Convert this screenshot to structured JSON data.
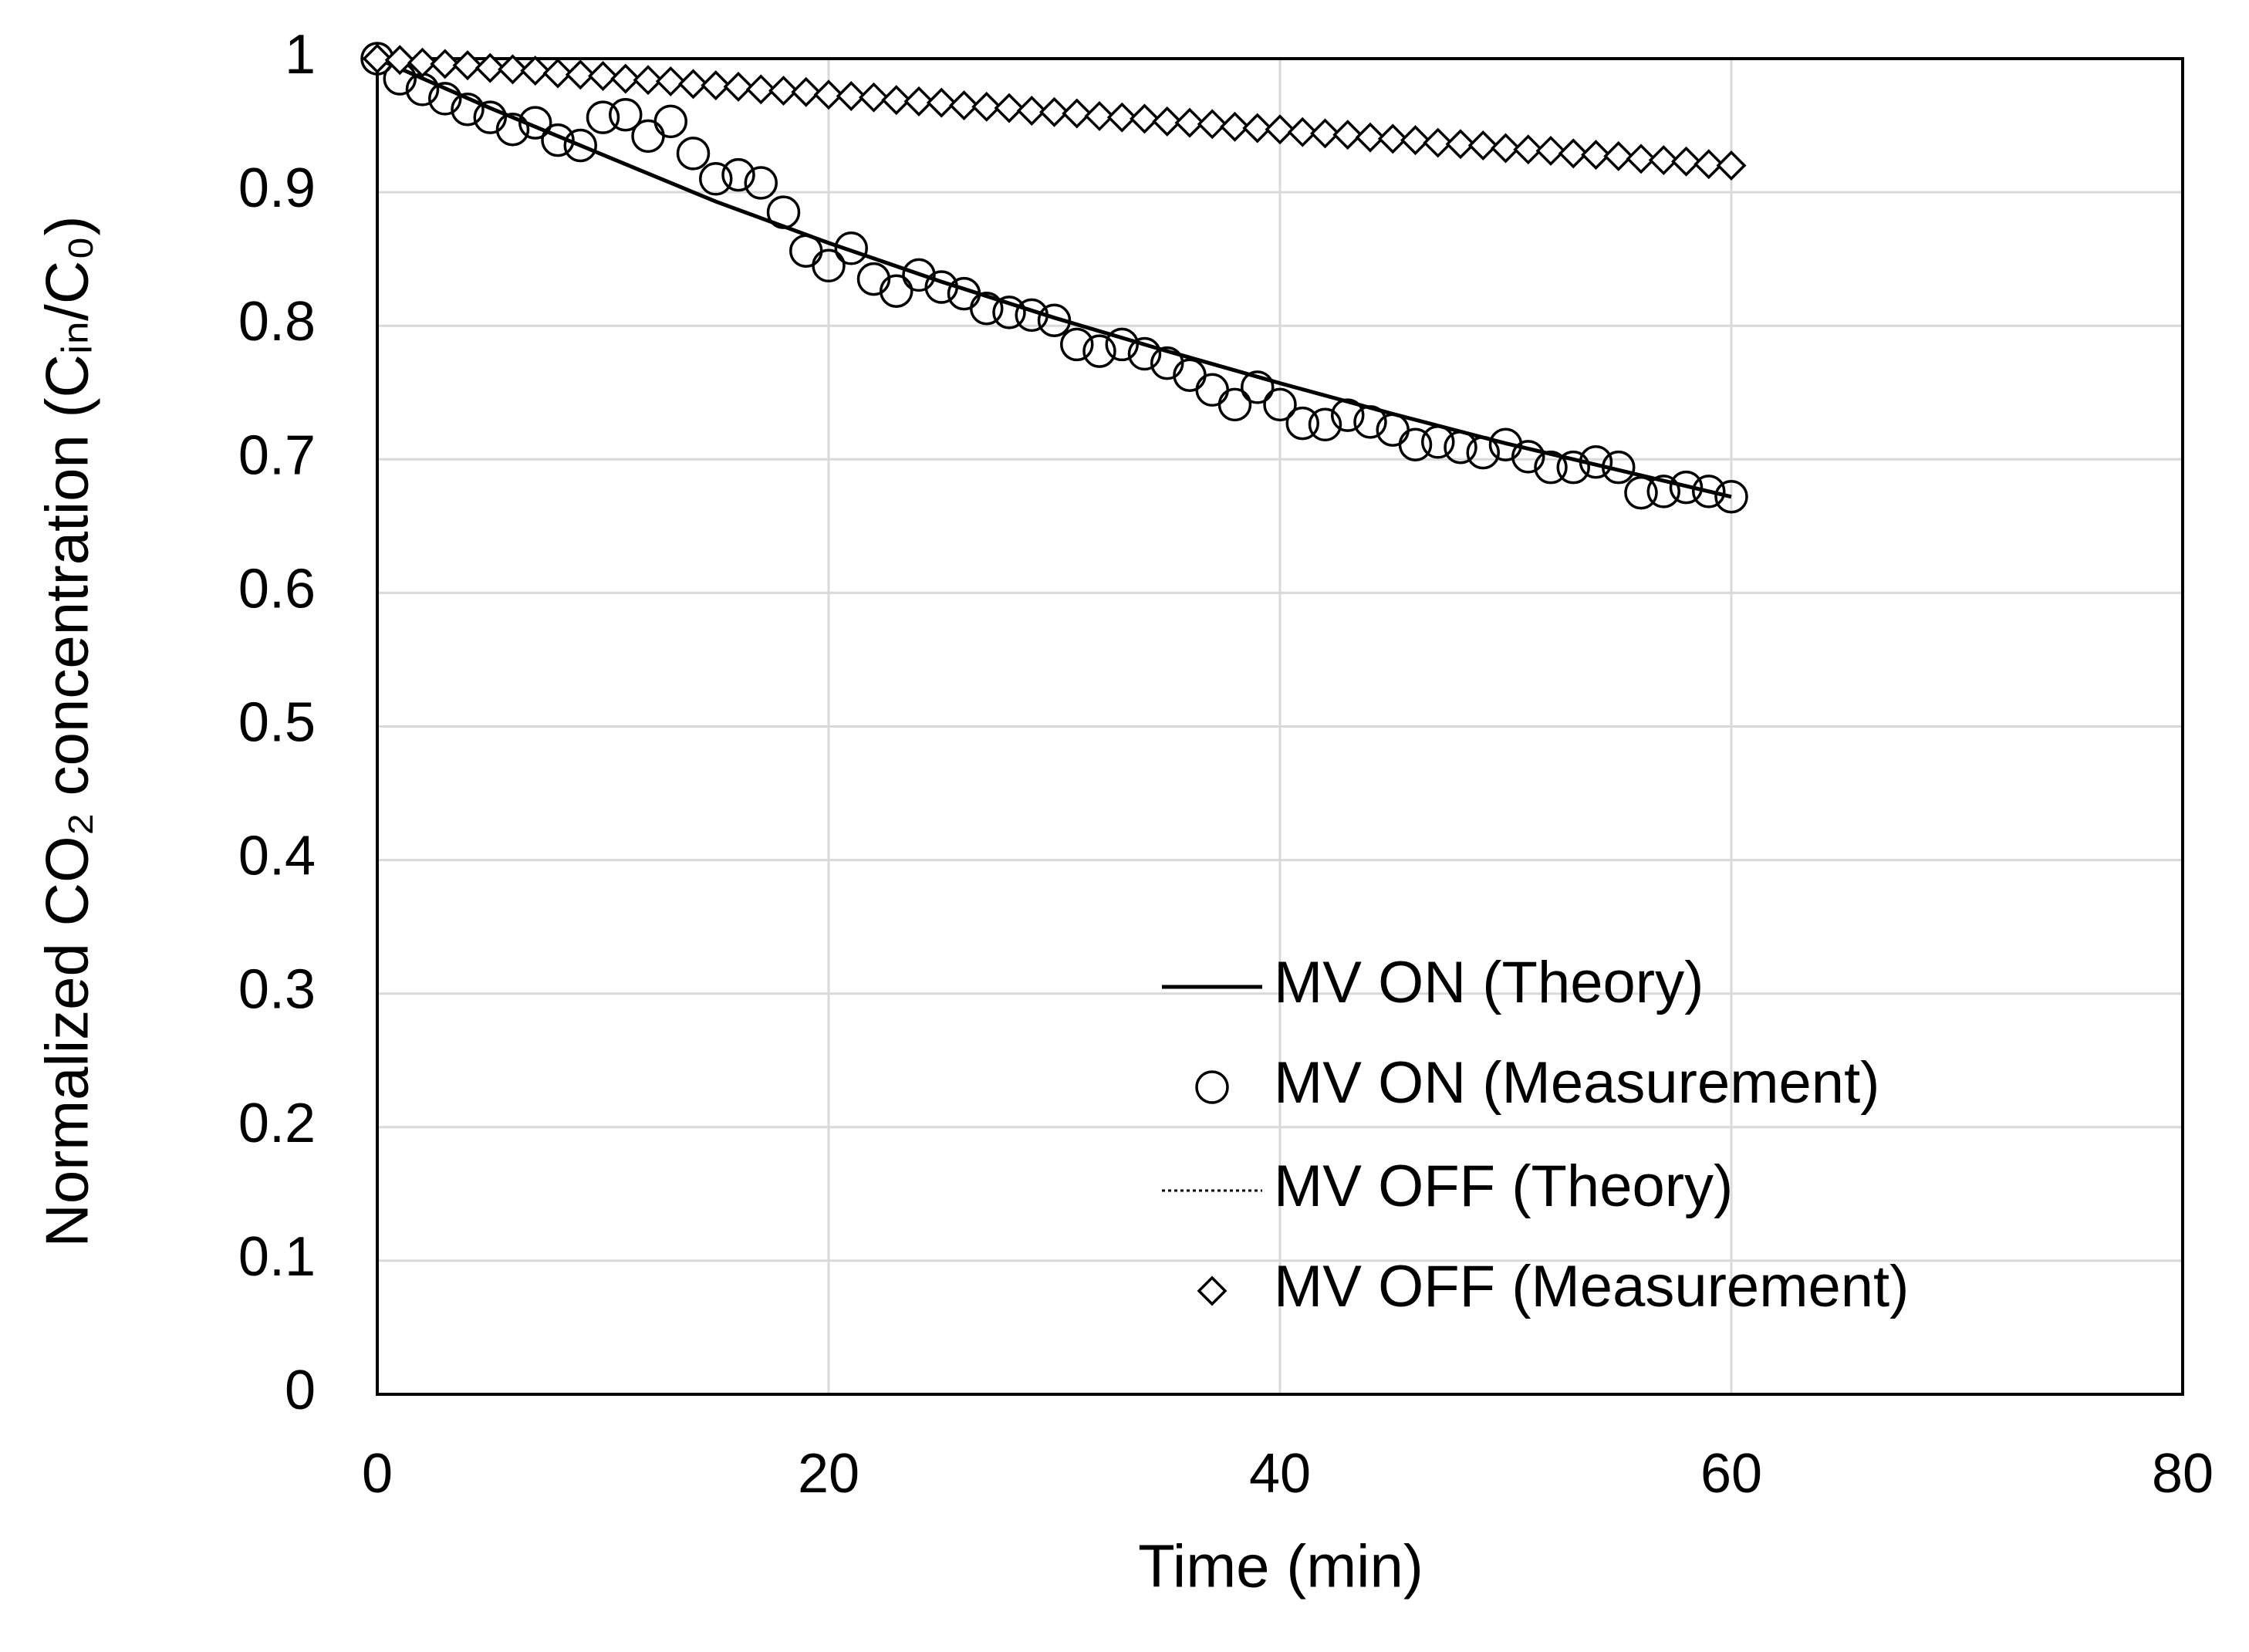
{
  "chart_data": {
    "type": "scatter",
    "xlabel": "Time (min)",
    "ylabel": "Normalized CO₂ concentration (Cᵢₙ/C₀)",
    "xlim": [
      0,
      80
    ],
    "xticks": [
      0,
      20,
      40,
      60,
      80
    ],
    "ylim": [
      0,
      1
    ],
    "yticks": [
      0,
      0.1,
      0.2,
      0.3,
      0.4,
      0.5,
      0.6,
      0.7,
      0.8,
      0.9,
      1
    ],
    "grid": true,
    "legend": "lower right",
    "series": [
      {
        "name": "MV ON (Theory)",
        "style": "solid",
        "color": "#000000",
        "x": [
          0,
          5,
          10,
          15,
          20,
          25,
          30,
          35,
          40,
          45,
          50,
          55,
          60
        ],
        "values": [
          1,
          0.963,
          0.928,
          0.893,
          0.862,
          0.833,
          0.806,
          0.781,
          0.757,
          0.734,
          0.712,
          0.692,
          0.672
        ]
      },
      {
        "name": "MV ON (Measurement)",
        "style": "circle",
        "color": "#000000",
        "x": [
          0,
          1,
          2,
          3,
          4,
          5,
          6,
          7,
          8,
          9,
          10,
          11,
          12,
          13,
          14,
          15,
          16,
          17,
          18,
          19,
          20,
          21,
          22,
          23,
          24,
          25,
          26,
          27,
          28,
          29,
          30,
          31,
          32,
          33,
          34,
          35,
          36,
          37,
          38,
          39,
          40,
          41,
          42,
          43,
          44,
          45,
          46,
          47,
          48,
          49,
          50,
          51,
          52,
          53,
          54,
          55,
          56,
          57,
          58,
          59,
          60
        ],
        "values": [
          1,
          0.985,
          0.977,
          0.97,
          0.962,
          0.956,
          0.947,
          0.952,
          0.939,
          0.935,
          0.956,
          0.958,
          0.942,
          0.953,
          0.929,
          0.91,
          0.913,
          0.907,
          0.885,
          0.856,
          0.845,
          0.858,
          0.835,
          0.826,
          0.838,
          0.829,
          0.824,
          0.813,
          0.81,
          0.808,
          0.804,
          0.786,
          0.781,
          0.786,
          0.779,
          0.772,
          0.763,
          0.752,
          0.741,
          0.754,
          0.741,
          0.727,
          0.726,
          0.733,
          0.728,
          0.722,
          0.711,
          0.713,
          0.709,
          0.705,
          0.711,
          0.702,
          0.694,
          0.694,
          0.698,
          0.694,
          0.675,
          0.676,
          0.679,
          0.676,
          0.672
        ]
      },
      {
        "name": "MV OFF (Theory)",
        "style": "dotted",
        "color": "#000000",
        "x": [
          0,
          5,
          10,
          15,
          20,
          25,
          30,
          35,
          40,
          45,
          50,
          55,
          60
        ],
        "values": [
          1,
          0.993,
          0.987,
          0.98,
          0.973,
          0.967,
          0.96,
          0.953,
          0.947,
          0.94,
          0.933,
          0.927,
          0.92
        ]
      },
      {
        "name": "MV OFF (Measurement)",
        "style": "diamond",
        "color": "#000000",
        "x": [
          0,
          1,
          2,
          3,
          4,
          5,
          6,
          7,
          8,
          9,
          10,
          11,
          12,
          13,
          14,
          15,
          16,
          17,
          18,
          19,
          20,
          21,
          22,
          23,
          24,
          25,
          26,
          27,
          28,
          29,
          30,
          31,
          32,
          33,
          34,
          35,
          36,
          37,
          38,
          39,
          40,
          41,
          42,
          43,
          44,
          45,
          46,
          47,
          48,
          49,
          50,
          51,
          52,
          53,
          54,
          55,
          56,
          57,
          58,
          59,
          60
        ],
        "values": [
          1,
          0.999,
          0.997,
          0.996,
          0.995,
          0.993,
          0.992,
          0.991,
          0.989,
          0.988,
          0.987,
          0.985,
          0.984,
          0.983,
          0.981,
          0.98,
          0.979,
          0.977,
          0.976,
          0.975,
          0.973,
          0.972,
          0.971,
          0.969,
          0.968,
          0.967,
          0.965,
          0.964,
          0.963,
          0.961,
          0.96,
          0.959,
          0.957,
          0.956,
          0.955,
          0.953,
          0.952,
          0.951,
          0.949,
          0.948,
          0.947,
          0.945,
          0.944,
          0.943,
          0.941,
          0.94,
          0.939,
          0.937,
          0.936,
          0.935,
          0.933,
          0.932,
          0.931,
          0.929,
          0.928,
          0.927,
          0.925,
          0.924,
          0.923,
          0.921,
          0.92
        ]
      }
    ]
  }
}
